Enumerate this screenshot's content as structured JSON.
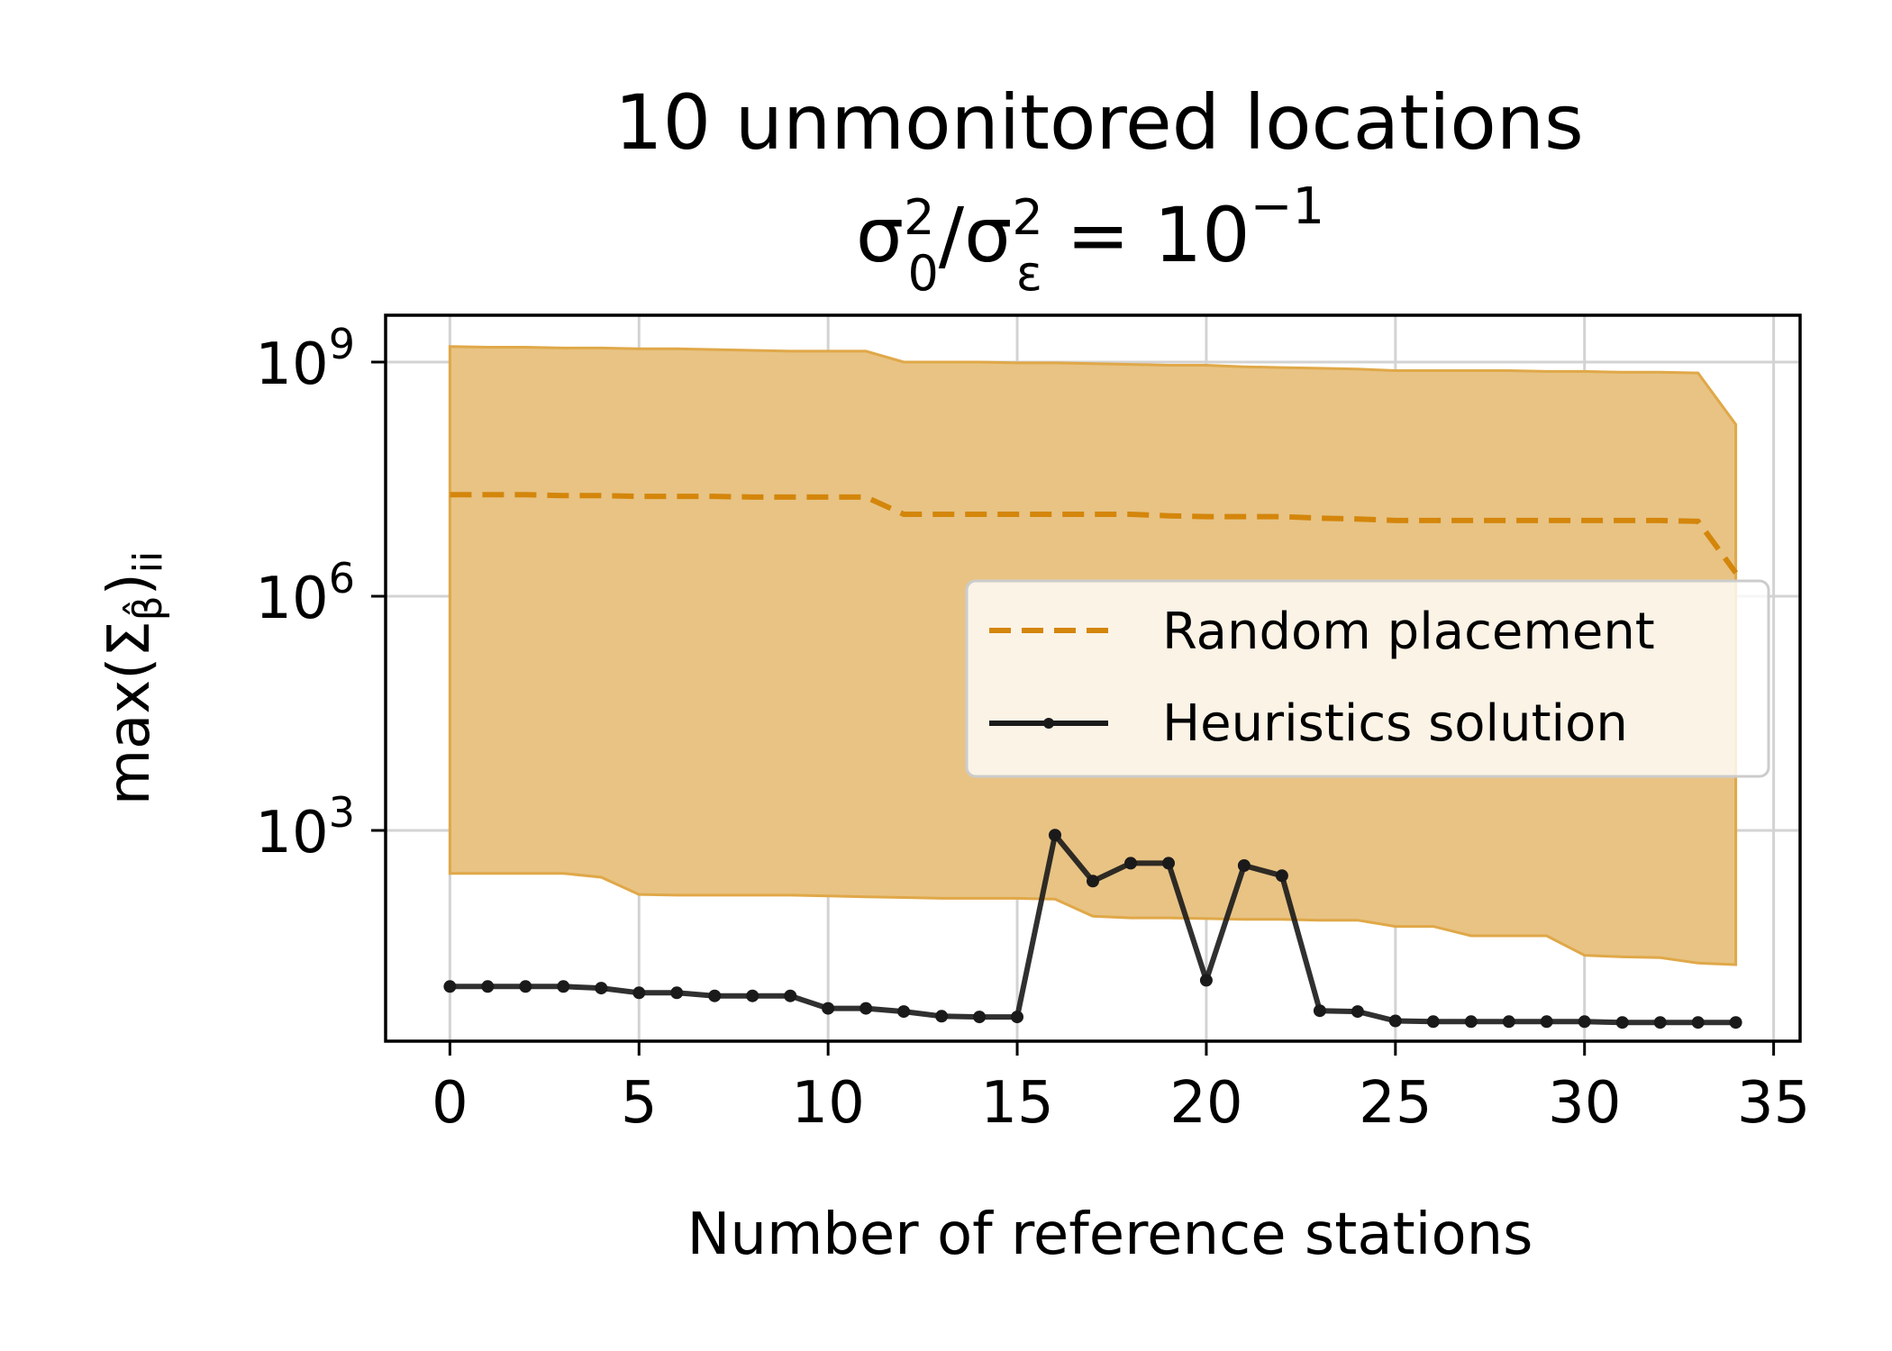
{
  "chart_data": {
    "type": "line",
    "title": "10 unmonitored locations",
    "subtitle_parts": {
      "sigma": "σ",
      "sub0": "0",
      "sup2": "2",
      "slash": "/",
      "subeps": "ε",
      "eq": " = 10",
      "exp": "−1"
    },
    "xlabel": "Number of reference stations",
    "ylabel_parts": {
      "pre": "max(Σ",
      "sub": "β̂",
      "post": ")",
      "sub2": "ii"
    },
    "xlim": [
      -1.7,
      35.7
    ],
    "ylim_log10": [
      0.3,
      9.6
    ],
    "y_scale": "log",
    "x_ticks": [
      0,
      5,
      10,
      15,
      20,
      25,
      30,
      35
    ],
    "y_ticks": [
      {
        "exp": 9,
        "base": "10",
        "sup": "9"
      },
      {
        "exp": 6,
        "base": "10",
        "sup": "6"
      },
      {
        "exp": 3,
        "base": "10",
        "sup": "3"
      }
    ],
    "grid": true,
    "legend_position": "center-right",
    "colors": {
      "random": "#d4860b",
      "band": "#e8c384",
      "band_edge": "#e0a848",
      "heuristic": "#1a1a1a",
      "grid": "#d3d3d3"
    },
    "series": [
      {
        "name": "Random placement",
        "style": "dashed",
        "x": [
          0,
          1,
          2,
          3,
          4,
          5,
          6,
          7,
          8,
          9,
          10,
          11,
          12,
          13,
          14,
          15,
          16,
          17,
          18,
          19,
          20,
          21,
          22,
          23,
          24,
          25,
          26,
          27,
          28,
          29,
          30,
          31,
          32,
          33,
          34
        ],
        "log10_y": [
          7.3,
          7.3,
          7.3,
          7.29,
          7.29,
          7.28,
          7.28,
          7.28,
          7.27,
          7.27,
          7.27,
          7.27,
          7.05,
          7.05,
          7.05,
          7.05,
          7.05,
          7.05,
          7.05,
          7.03,
          7.02,
          7.02,
          7.02,
          7.0,
          6.99,
          6.97,
          6.97,
          6.97,
          6.97,
          6.97,
          6.97,
          6.97,
          6.97,
          6.96,
          6.3
        ]
      },
      {
        "name": "Heuristics solution",
        "style": "solid-marker",
        "x": [
          0,
          1,
          2,
          3,
          4,
          5,
          6,
          7,
          8,
          9,
          10,
          11,
          12,
          13,
          14,
          15,
          16,
          17,
          18,
          19,
          20,
          21,
          22,
          23,
          24,
          25,
          26,
          27,
          28,
          29,
          30,
          31,
          32,
          33,
          34
        ],
        "log10_y": [
          1.0,
          1.0,
          1.0,
          1.0,
          0.98,
          0.92,
          0.92,
          0.88,
          0.88,
          0.88,
          0.72,
          0.72,
          0.68,
          0.62,
          0.61,
          0.61,
          2.94,
          2.35,
          2.58,
          2.58,
          1.08,
          2.55,
          2.42,
          0.69,
          0.68,
          0.56,
          0.55,
          0.55,
          0.55,
          0.55,
          0.55,
          0.54,
          0.54,
          0.54,
          0.54
        ]
      }
    ],
    "band": {
      "name": "Random placement range",
      "x": [
        0,
        1,
        2,
        3,
        4,
        5,
        6,
        7,
        8,
        9,
        10,
        11,
        12,
        13,
        14,
        15,
        16,
        17,
        18,
        19,
        20,
        21,
        22,
        23,
        24,
        25,
        26,
        27,
        28,
        29,
        30,
        31,
        32,
        33,
        34
      ],
      "log10_upper": [
        9.2,
        9.19,
        9.19,
        9.18,
        9.18,
        9.17,
        9.17,
        9.16,
        9.15,
        9.14,
        9.14,
        9.14,
        9.0,
        9.0,
        9.0,
        8.99,
        8.99,
        8.98,
        8.97,
        8.96,
        8.96,
        8.94,
        8.93,
        8.92,
        8.91,
        8.89,
        8.89,
        8.89,
        8.89,
        8.88,
        8.88,
        8.87,
        8.87,
        8.86,
        8.2
      ],
      "log10_lower": [
        2.45,
        2.45,
        2.45,
        2.45,
        2.4,
        2.18,
        2.17,
        2.17,
        2.17,
        2.17,
        2.16,
        2.15,
        2.14,
        2.13,
        2.13,
        2.13,
        2.12,
        1.9,
        1.88,
        1.88,
        1.87,
        1.86,
        1.86,
        1.85,
        1.85,
        1.77,
        1.77,
        1.65,
        1.65,
        1.65,
        1.4,
        1.38,
        1.37,
        1.3,
        1.28
      ]
    },
    "legend": [
      {
        "label": "Random placement",
        "key": "random"
      },
      {
        "label": "Heuristics solution",
        "key": "heuristic"
      }
    ]
  }
}
